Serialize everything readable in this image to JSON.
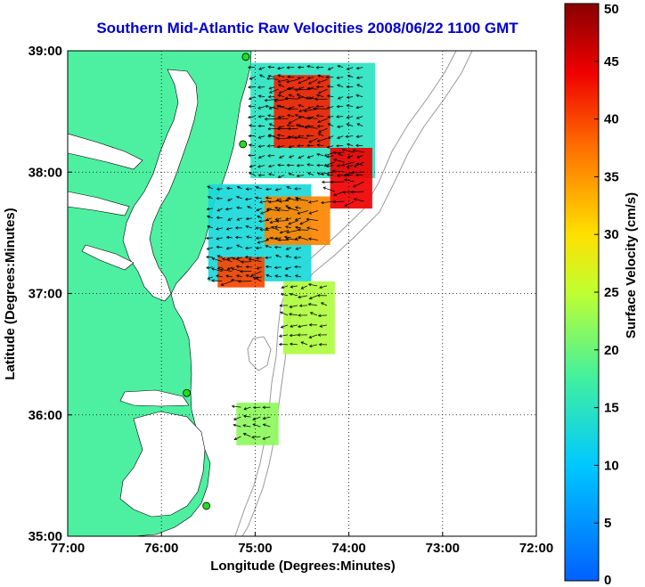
{
  "title": "Southern Mid-Atlantic Raw Velocities 2008/06/22 1100 GMT",
  "map": {
    "xlabel": "Longitude (Degrees:Minutes)",
    "ylabel": "Latitude (Degrees:Minutes)",
    "xlim": [
      -77,
      -72
    ],
    "ylim": [
      35,
      39
    ],
    "x_ticks": [
      {
        "value": -77,
        "label": "77:00"
      },
      {
        "value": -76,
        "label": "76:00"
      },
      {
        "value": -75,
        "label": "75:00"
      },
      {
        "value": -74,
        "label": "74:00"
      },
      {
        "value": -73,
        "label": "73:00"
      },
      {
        "value": -72,
        "label": "72:00"
      }
    ],
    "y_ticks": [
      {
        "value": 39,
        "label": "39:00"
      },
      {
        "value": 38,
        "label": "38:00"
      },
      {
        "value": 37,
        "label": "37:00"
      },
      {
        "value": 36,
        "label": "36:00"
      },
      {
        "value": 35,
        "label": "35:00"
      }
    ],
    "grid": "dotted",
    "land_color": "#4df0a0",
    "water_color": "#ffffff",
    "isobath_color": "#999999"
  },
  "colorbar": {
    "label": "Surface Velocity (cm/s)",
    "min": 0,
    "max": 50,
    "ticks": [
      {
        "value": 0,
        "label": "0"
      },
      {
        "value": 5,
        "label": "5"
      },
      {
        "value": 10,
        "label": "10"
      },
      {
        "value": 15,
        "label": "15"
      },
      {
        "value": 20,
        "label": "20"
      },
      {
        "value": 25,
        "label": "25"
      },
      {
        "value": 30,
        "label": "30"
      },
      {
        "value": 35,
        "label": "35"
      },
      {
        "value": 40,
        "label": "40"
      },
      {
        "value": 45,
        "label": "45"
      },
      {
        "value": 50,
        "label": "50"
      }
    ],
    "colormap": "jet"
  },
  "stations": [
    {
      "lon": -75.1,
      "lat": 38.95
    },
    {
      "lon": -75.13,
      "lat": 38.23
    },
    {
      "lon": -75.73,
      "lat": 36.18
    },
    {
      "lon": -75.52,
      "lat": 35.25
    }
  ],
  "velocity_regions": [
    {
      "lon_min": -75.05,
      "lon_max": -73.72,
      "lat_min": 37.95,
      "lat_max": 38.9,
      "speed": 15
    },
    {
      "lon_min": -74.8,
      "lon_max": -74.2,
      "lat_min": 38.2,
      "lat_max": 38.8,
      "speed": 42
    },
    {
      "lon_min": -74.2,
      "lon_max": -73.75,
      "lat_min": 37.7,
      "lat_max": 38.2,
      "speed": 44
    },
    {
      "lon_min": -75.5,
      "lon_max": -74.4,
      "lat_min": 37.1,
      "lat_max": 37.9,
      "speed": 13
    },
    {
      "lon_min": -74.9,
      "lon_max": -74.2,
      "lat_min": 37.4,
      "lat_max": 37.8,
      "speed": 36
    },
    {
      "lon_min": -75.4,
      "lon_max": -74.9,
      "lat_min": 37.05,
      "lat_max": 37.3,
      "speed": 40
    },
    {
      "lon_min": -74.7,
      "lon_max": -74.15,
      "lat_min": 36.5,
      "lat_max": 37.1,
      "speed": 24
    },
    {
      "lon_min": -75.2,
      "lon_max": -74.75,
      "lat_min": 35.75,
      "lat_max": 36.1,
      "speed": 22
    }
  ]
}
